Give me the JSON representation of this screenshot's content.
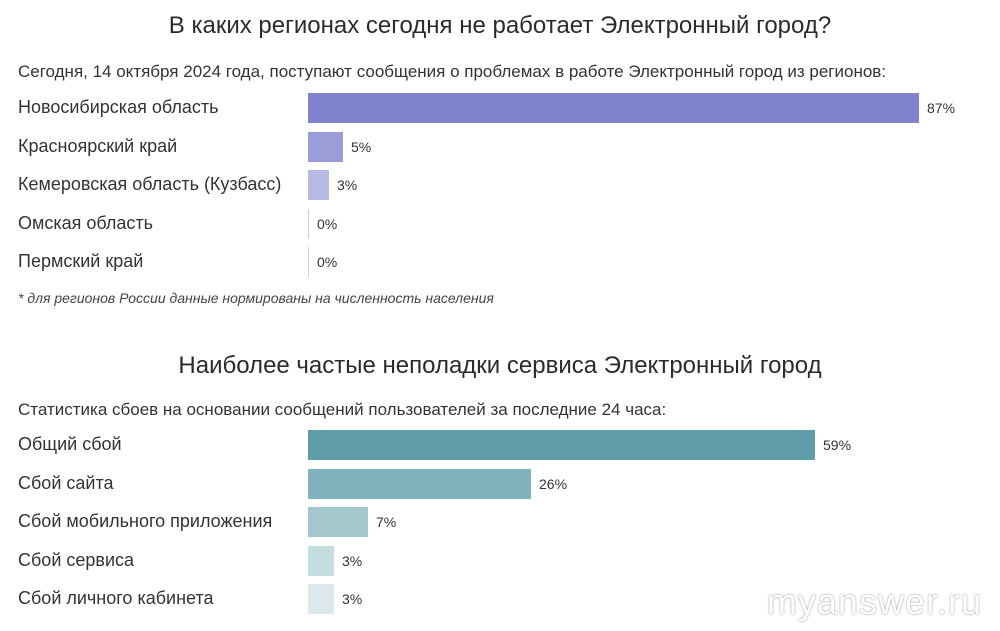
{
  "chart_data": [
    {
      "type": "bar",
      "orientation": "horizontal",
      "title": "В каких регионах сегодня не работает Электронный город?",
      "subtitle": "Сегодня, 14 октября 2024 года, поступают сообщения о проблемах в работе Электронный город из регионов:",
      "note": "* для регионов России данные нормированы на численность населения",
      "categories": [
        "Новосибирская область",
        "Красноярский край",
        "Кемеровская область (Кузбасс)",
        "Омская область",
        "Пермский край"
      ],
      "values": [
        87,
        5,
        3,
        0,
        0
      ],
      "value_labels": [
        "87%",
        "5%",
        "3%",
        "0%",
        "0%"
      ],
      "colors": [
        "#7f82cc",
        "#9a9dd8",
        "#b7b9e4",
        "#d6d7ef",
        "#d6d7ef"
      ],
      "xlim": [
        0,
        87
      ]
    },
    {
      "type": "bar",
      "orientation": "horizontal",
      "title": "Наиболее частые неполадки сервиса Электронный город",
      "subtitle": "Статистика сбоев на основании сообщений пользователей за последние 24 часа:",
      "categories": [
        "Общий сбой",
        "Сбой сайта",
        "Сбой мобильного приложения",
        "Сбой сервиса",
        "Сбой личного кабинета"
      ],
      "values": [
        59,
        26,
        7,
        3,
        3
      ],
      "value_labels": [
        "59%",
        "26%",
        "7%",
        "3%",
        "3%"
      ],
      "colors": [
        "#5f9ea8",
        "#7fb2ba",
        "#a2c8ce",
        "#c4dde1",
        "#dbe9ec"
      ],
      "xlim": [
        0,
        59
      ]
    }
  ],
  "watermark": "myanswer.ru"
}
